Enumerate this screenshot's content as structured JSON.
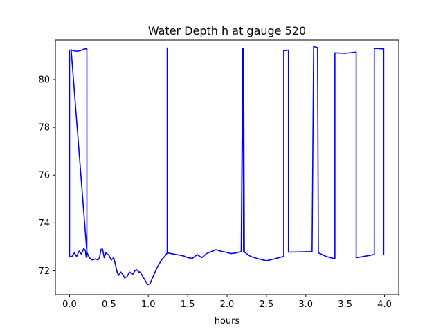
{
  "chart_data": {
    "type": "line",
    "title": "Water Depth h at gauge 520",
    "xlabel": "hours",
    "ylabel": "",
    "xlim": [
      -0.18,
      4.18
    ],
    "ylim": [
      71.0,
      81.65
    ],
    "xticks": [
      0.0,
      0.5,
      1.0,
      1.5,
      2.0,
      2.5,
      3.0,
      3.5,
      4.0
    ],
    "xtick_labels": [
      "0.0",
      "0.5",
      "1.0",
      "1.5",
      "2.0",
      "2.5",
      "3.0",
      "3.5",
      "4.0"
    ],
    "yticks": [
      72,
      74,
      76,
      78,
      80
    ],
    "ytick_labels": [
      "72",
      "74",
      "76",
      "78",
      "80"
    ],
    "grid": false,
    "series": [
      {
        "color": "#0000ff",
        "points": [
          [
            0.0,
            81.25
          ],
          [
            0.0,
            72.58
          ],
          [
            0.03,
            72.6
          ],
          [
            0.06,
            72.75
          ],
          [
            0.09,
            72.6
          ],
          [
            0.12,
            72.82
          ],
          [
            0.15,
            72.7
          ],
          [
            0.18,
            72.93
          ],
          [
            0.2,
            72.85
          ],
          [
            0.21,
            72.6
          ],
          [
            0.22,
            72.55
          ],
          [
            0.22,
            81.28
          ],
          [
            0.19,
            81.28
          ],
          [
            0.15,
            81.22
          ],
          [
            0.1,
            81.18
          ],
          [
            0.06,
            81.2
          ],
          [
            0.03,
            81.22
          ],
          [
            0.02,
            81.25
          ],
          [
            0.22,
            72.78
          ],
          [
            0.25,
            72.55
          ],
          [
            0.29,
            72.45
          ],
          [
            0.33,
            72.5
          ],
          [
            0.36,
            72.45
          ],
          [
            0.38,
            72.55
          ],
          [
            0.4,
            72.9
          ],
          [
            0.42,
            72.9
          ],
          [
            0.44,
            72.55
          ],
          [
            0.46,
            72.75
          ],
          [
            0.5,
            72.65
          ],
          [
            0.53,
            72.45
          ],
          [
            0.56,
            72.55
          ],
          [
            0.58,
            72.3
          ],
          [
            0.6,
            72.0
          ],
          [
            0.62,
            71.8
          ],
          [
            0.65,
            71.95
          ],
          [
            0.68,
            71.82
          ],
          [
            0.7,
            71.7
          ],
          [
            0.73,
            71.75
          ],
          [
            0.76,
            71.95
          ],
          [
            0.8,
            71.85
          ],
          [
            0.83,
            72.0
          ],
          [
            0.85,
            72.05
          ],
          [
            0.88,
            71.95
          ],
          [
            0.9,
            71.95
          ],
          [
            0.93,
            71.75
          ],
          [
            0.96,
            71.6
          ],
          [
            0.99,
            71.42
          ],
          [
            1.02,
            71.45
          ],
          [
            1.06,
            71.75
          ],
          [
            1.1,
            72.05
          ],
          [
            1.14,
            72.3
          ],
          [
            1.18,
            72.5
          ],
          [
            1.22,
            72.65
          ],
          [
            1.24,
            72.75
          ],
          [
            1.24,
            81.32
          ],
          [
            1.24,
            72.75
          ],
          [
            1.45,
            72.62
          ],
          [
            1.5,
            72.55
          ],
          [
            1.56,
            72.52
          ],
          [
            1.62,
            72.68
          ],
          [
            1.68,
            72.55
          ],
          [
            1.74,
            72.72
          ],
          [
            1.8,
            72.8
          ],
          [
            1.86,
            72.88
          ],
          [
            1.92,
            72.82
          ],
          [
            1.98,
            72.78
          ],
          [
            2.05,
            72.72
          ],
          [
            2.12,
            72.75
          ],
          [
            2.18,
            72.8
          ],
          [
            2.2,
            81.3
          ],
          [
            2.21,
            72.8
          ],
          [
            2.21,
            81.3
          ],
          [
            2.22,
            72.78
          ],
          [
            2.3,
            72.6
          ],
          [
            2.4,
            72.5
          ],
          [
            2.5,
            72.42
          ],
          [
            2.58,
            72.48
          ],
          [
            2.66,
            72.55
          ],
          [
            2.72,
            72.6
          ],
          [
            2.72,
            81.2
          ],
          [
            2.78,
            81.23
          ],
          [
            2.78,
            72.78
          ],
          [
            3.08,
            72.8
          ],
          [
            3.1,
            81.38
          ],
          [
            3.15,
            81.33
          ],
          [
            3.16,
            72.75
          ],
          [
            3.26,
            72.6
          ],
          [
            3.37,
            72.5
          ],
          [
            3.37,
            81.12
          ],
          [
            3.5,
            81.1
          ],
          [
            3.64,
            81.15
          ],
          [
            3.64,
            72.55
          ],
          [
            3.7,
            72.58
          ],
          [
            3.87,
            72.68
          ],
          [
            3.87,
            81.3
          ],
          [
            3.99,
            81.28
          ],
          [
            3.99,
            72.68
          ]
        ]
      }
    ]
  }
}
